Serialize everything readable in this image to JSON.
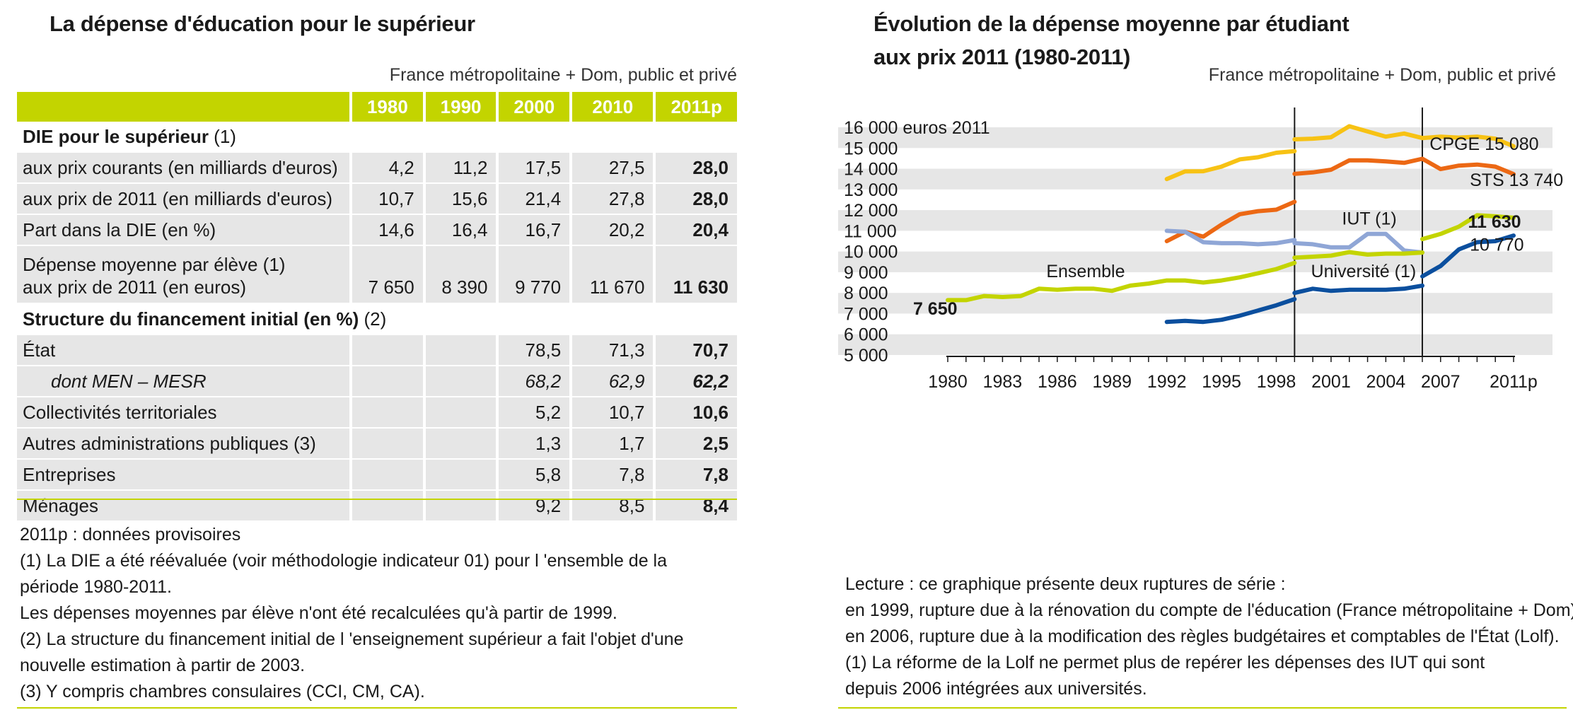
{
  "left": {
    "title": "La dépense d'éducation pour le supérieur",
    "subtitle": "France métropolitaine + Dom, public et privé",
    "columns": [
      "1980",
      "1990",
      "2000",
      "2010",
      "2011p"
    ],
    "section1": {
      "label": "DIE pour le supérieur",
      "note": " (1)"
    },
    "rows1": [
      {
        "label": "aux prix courants (en milliards d'euros)",
        "values": [
          "4,2",
          "11,2",
          "17,5",
          "27,5",
          "28,0"
        ]
      },
      {
        "label": "aux prix de 2011 (en milliards d'euros)",
        "values": [
          "10,7",
          "15,6",
          "21,4",
          "27,8",
          "28,0"
        ]
      },
      {
        "label": "Part dans la DIE (en %)",
        "values": [
          "14,6",
          "16,4",
          "16,7",
          "20,2",
          "20,4"
        ]
      }
    ],
    "row_tall": {
      "label1": "Dépense moyenne par élève (1)",
      "label2": "aux prix de 2011 (en euros)",
      "values": [
        "7 650",
        "8 390",
        "9 770",
        "11 670",
        "11 630"
      ]
    },
    "section2": {
      "label": "Structure du financement initial (en %)",
      "note": " (2)"
    },
    "rows2": [
      {
        "label": "État",
        "values": [
          "",
          "",
          "78,5",
          "71,3",
          "70,7"
        ]
      },
      {
        "label": "dont MEN – MESR",
        "values": [
          "",
          "",
          "68,2",
          "62,9",
          "62,2"
        ]
      },
      {
        "label": "Collectivités territoriales",
        "values": [
          "",
          "",
          "5,2",
          "10,7",
          "10,6"
        ]
      },
      {
        "label": "Autres administrations publiques (3)",
        "values": [
          "",
          "",
          "1,3",
          "1,7",
          "2,5"
        ]
      },
      {
        "label": "Entreprises",
        "values": [
          "",
          "",
          "5,8",
          "7,8",
          "7,8"
        ]
      },
      {
        "label": "Ménages",
        "values": [
          "",
          "",
          "9,2",
          "8,5",
          "8,4"
        ]
      }
    ],
    "notes": [
      "2011p : données provisoires",
      "(1) La DIE a été réévaluée (voir méthodologie indicateur 01) pour l 'ensemble de la",
      "période 1980-2011.",
      "Les dépenses moyennes par élève n'ont été recalculées qu'à partir de 1999.",
      "(2) La structure du financement initial de l 'enseignement supérieur a fait l'objet d'une",
      "nouvelle estimation à partir de 2003.",
      "(3) Y compris chambres consulaires (CCI, CM, CA)."
    ]
  },
  "right": {
    "title_line1": "Évolution de la dépense moyenne par étudiant",
    "title_line2": "aux prix 2011 (1980-2011)",
    "subtitle": "France métropolitaine + Dom, public et privé",
    "notes": [
      "Lecture : ce graphique présente deux ruptures de série :",
      "en 1999, rupture due à la rénovation du compte de l'éducation (France métropolitaine + Dom) ;",
      "en 2006, rupture due à la modification des règles budgétaires et comptables de l'État (Lolf).",
      "(1) La réforme de la Lolf ne permet plus de repérer les dépenses des IUT qui sont",
      "depuis 2006 intégrées aux universités."
    ]
  },
  "chart_data": {
    "type": "line",
    "ylim": [
      5000,
      16000
    ],
    "xlim": [
      1980,
      2011
    ],
    "y_ticks": [
      5000,
      6000,
      7000,
      8000,
      9000,
      10000,
      11000,
      12000,
      13000,
      14000,
      15000,
      16000
    ],
    "y_tick_labels": [
      "5 000",
      "6 000",
      "7 000",
      "8 000",
      "9 000",
      "10 000",
      "11 000",
      "12 000",
      "13 000",
      "14 000",
      "15 000",
      "16 000 euros 2011"
    ],
    "x_tick_labels": [
      {
        "x": 1980,
        "label": "1980"
      },
      {
        "x": 1983,
        "label": "1983"
      },
      {
        "x": 1986,
        "label": "1986"
      },
      {
        "x": 1989,
        "label": "1989"
      },
      {
        "x": 1992,
        "label": "1992"
      },
      {
        "x": 1995,
        "label": "1995"
      },
      {
        "x": 1998,
        "label": "1998"
      },
      {
        "x": 2001,
        "label": "2001"
      },
      {
        "x": 2004,
        "label": "2004"
      },
      {
        "x": 2007,
        "label": "2007"
      },
      {
        "x": 2011,
        "label": "2011p"
      }
    ],
    "breaks": [
      1999,
      2006
    ],
    "band_stripes": true,
    "series": [
      {
        "name": "CPGE",
        "color": "#f7c214",
        "segments": [
          [
            [
              1992,
              13500
            ],
            [
              1993,
              13870
            ],
            [
              1994,
              13880
            ],
            [
              1995,
              14100
            ],
            [
              1996,
              14450
            ],
            [
              1997,
              14550
            ],
            [
              1998,
              14770
            ],
            [
              1999,
              14850
            ]
          ],
          [
            [
              1999,
              15420
            ],
            [
              2000,
              15450
            ],
            [
              2001,
              15520
            ],
            [
              2002,
              16050
            ],
            [
              2003,
              15800
            ],
            [
              2004,
              15550
            ],
            [
              2005,
              15700
            ],
            [
              2006,
              15480
            ],
            [
              2007,
              15550
            ],
            [
              2008,
              15500
            ],
            [
              2009,
              15550
            ],
            [
              2010,
              15450
            ],
            [
              2011,
              15080
            ]
          ]
        ]
      },
      {
        "name": "STS",
        "color": "#ec6814",
        "segments": [
          [
            [
              1992,
              10500
            ],
            [
              1993,
              10950
            ],
            [
              1994,
              10720
            ],
            [
              1995,
              11300
            ],
            [
              1996,
              11800
            ],
            [
              1997,
              11950
            ],
            [
              1998,
              12020
            ],
            [
              1999,
              12400
            ]
          ],
          [
            [
              1999,
              13750
            ],
            [
              2000,
              13820
            ],
            [
              2001,
              13950
            ],
            [
              2002,
              14400
            ],
            [
              2003,
              14400
            ],
            [
              2004,
              14350
            ],
            [
              2005,
              14280
            ],
            [
              2006,
              14480
            ],
            [
              2007,
              13980
            ],
            [
              2008,
              14150
            ],
            [
              2009,
              14200
            ],
            [
              2010,
              14100
            ],
            [
              2011,
              13740
            ]
          ]
        ]
      },
      {
        "name": "IUT (1)",
        "color": "#8fa6d6",
        "segments": [
          [
            [
              1992,
              11000
            ],
            [
              1993,
              10950
            ],
            [
              1994,
              10450
            ],
            [
              1995,
              10400
            ],
            [
              1996,
              10400
            ],
            [
              1997,
              10350
            ],
            [
              1998,
              10400
            ],
            [
              1999,
              10550
            ]
          ],
          [
            [
              1999,
              10400
            ],
            [
              2000,
              10350
            ],
            [
              2001,
              10200
            ],
            [
              2002,
              10200
            ],
            [
              2003,
              10850
            ],
            [
              2004,
              10850
            ],
            [
              2005,
              10050
            ],
            [
              2006,
              9950
            ]
          ]
        ]
      },
      {
        "name": "Ensemble",
        "color": "#c3d400",
        "segments": [
          [
            [
              1980,
              7650
            ],
            [
              1981,
              7650
            ],
            [
              1982,
              7850
            ],
            [
              1983,
              7800
            ],
            [
              1984,
              7850
            ],
            [
              1985,
              8200
            ],
            [
              1986,
              8150
            ],
            [
              1987,
              8200
            ],
            [
              1988,
              8200
            ],
            [
              1989,
              8100
            ],
            [
              1990,
              8350
            ],
            [
              1991,
              8450
            ],
            [
              1992,
              8600
            ],
            [
              1993,
              8600
            ],
            [
              1994,
              8500
            ],
            [
              1995,
              8600
            ],
            [
              1996,
              8750
            ],
            [
              1997,
              8950
            ],
            [
              1998,
              9150
            ],
            [
              1999,
              9450
            ]
          ],
          [
            [
              1999,
              9700
            ],
            [
              2000,
              9750
            ],
            [
              2001,
              9800
            ],
            [
              2002,
              9970
            ],
            [
              2003,
              9850
            ],
            [
              2004,
              9900
            ],
            [
              2005,
              9900
            ],
            [
              2006,
              9950
            ]
          ],
          [
            [
              2006,
              10600
            ],
            [
              2007,
              10850
            ],
            [
              2008,
              11200
            ],
            [
              2009,
              11750
            ],
            [
              2010,
              11700
            ],
            [
              2011,
              11630
            ]
          ]
        ]
      },
      {
        "name": "Université (1)",
        "color": "#0b4f9e",
        "segments": [
          [
            [
              1992,
              6600
            ],
            [
              1993,
              6650
            ],
            [
              1994,
              6600
            ],
            [
              1995,
              6700
            ],
            [
              1996,
              6900
            ],
            [
              1997,
              7150
            ],
            [
              1998,
              7400
            ],
            [
              1999,
              7700
            ]
          ],
          [
            [
              1999,
              8000
            ],
            [
              2000,
              8200
            ],
            [
              2001,
              8100
            ],
            [
              2002,
              8150
            ],
            [
              2003,
              8150
            ],
            [
              2004,
              8150
            ],
            [
              2005,
              8200
            ],
            [
              2006,
              8350
            ]
          ],
          [
            [
              2006,
              8800
            ],
            [
              2007,
              9300
            ],
            [
              2008,
              10100
            ],
            [
              2009,
              10450
            ],
            [
              2010,
              10500
            ],
            [
              2011,
              10770
            ]
          ]
        ]
      }
    ],
    "labels": [
      {
        "text": "CPGE 15 080",
        "x": 2006.4,
        "y": 14900,
        "bold": false
      },
      {
        "text": "STS 13 740",
        "x": 2008.6,
        "y": 13160,
        "bold": false
      },
      {
        "text": "IUT (1)",
        "x": 2001.6,
        "y": 11300,
        "bold": false
      },
      {
        "text": "11 630",
        "x": 2008.5,
        "y": 11150,
        "bold": true
      },
      {
        "text": "10 770",
        "x": 2008.6,
        "y": 10040,
        "bold": false
      },
      {
        "text": "Ensemble",
        "x": 1985.4,
        "y": 8750,
        "bold": false
      },
      {
        "text": "Université (1)",
        "x": 1999.9,
        "y": 8750,
        "bold": false
      },
      {
        "text": "7 650",
        "x": 1978.1,
        "y": 6940,
        "bold": true
      }
    ]
  }
}
